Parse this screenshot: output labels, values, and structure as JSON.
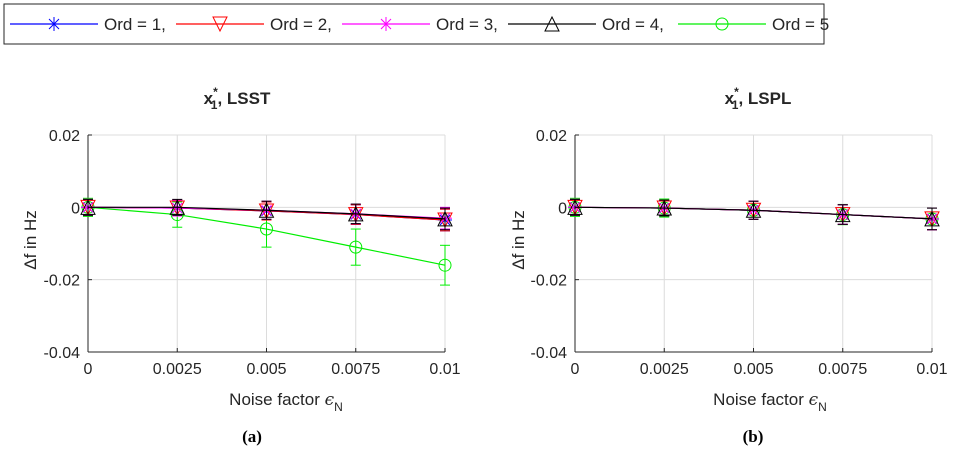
{
  "legend": {
    "entries": [
      {
        "label": "Ord = 1,",
        "color": "#0000ff",
        "marker": "asterisk"
      },
      {
        "label": "Ord = 2,",
        "color": "#ff0000",
        "marker": "triangle-down"
      },
      {
        "label": "Ord = 3,",
        "color": "#ff00ff",
        "marker": "asterisk"
      },
      {
        "label": "Ord = 4,",
        "color": "#000000",
        "marker": "triangle-up"
      },
      {
        "label": "Ord = 5",
        "color": "#00ee00",
        "marker": "circle"
      }
    ]
  },
  "chart_data": [
    {
      "type": "line",
      "title_main": "x",
      "title_sup": "*",
      "title_sub": "1",
      "title_rest": ", LSST",
      "xlabel_main": "Noise factor ",
      "xlabel_symbol": "ϵ",
      "xlabel_sub": "N",
      "ylabel": "Δf  in Hz",
      "caption": "(a)",
      "xlim": [
        0,
        0.01
      ],
      "ylim": [
        -0.04,
        0.02
      ],
      "xticks": [
        "0",
        "0.0025",
        "0.005",
        "0.0075",
        "0.01"
      ],
      "yticks": [
        "-0.04",
        "-0.02",
        "0",
        "0.02"
      ],
      "x": [
        0,
        0.0025,
        0.005,
        0.0075,
        0.01
      ],
      "series": [
        {
          "name": "Ord = 1",
          "values": [
            0,
            -0.0002,
            -0.001,
            -0.002,
            -0.0035
          ],
          "err": [
            0.0022,
            0.0022,
            0.0025,
            0.0027,
            0.003
          ]
        },
        {
          "name": "Ord = 2",
          "values": [
            0,
            -0.0002,
            -0.001,
            -0.002,
            -0.0035
          ],
          "err": [
            0.0022,
            0.0022,
            0.0025,
            0.0027,
            0.003
          ]
        },
        {
          "name": "Ord = 3",
          "values": [
            0,
            -0.0002,
            -0.0008,
            -0.0018,
            -0.003
          ],
          "err": [
            0.0022,
            0.0022,
            0.0025,
            0.0027,
            0.003
          ]
        },
        {
          "name": "Ord = 4",
          "values": [
            0,
            0,
            -0.0008,
            -0.0018,
            -0.0032
          ],
          "err": [
            0.0022,
            0.0022,
            0.0025,
            0.0027,
            0.003
          ]
        },
        {
          "name": "Ord = 5",
          "values": [
            0,
            -0.002,
            -0.006,
            -0.011,
            -0.016
          ],
          "err": [
            0.0025,
            0.0035,
            0.005,
            0.005,
            0.0055
          ]
        }
      ]
    },
    {
      "type": "line",
      "title_main": "x",
      "title_sup": "*",
      "title_sub": "1",
      "title_rest": ", LSPL",
      "xlabel_main": "Noise factor ",
      "xlabel_symbol": "ϵ",
      "xlabel_sub": "N",
      "ylabel": "Δf  in Hz",
      "caption": "(b)",
      "xlim": [
        0,
        0.01
      ],
      "ylim": [
        -0.04,
        0.02
      ],
      "xticks": [
        "0",
        "0.0025",
        "0.005",
        "0.0075",
        "0.01"
      ],
      "yticks": [
        "-0.04",
        "-0.02",
        "0",
        "0.02"
      ],
      "x": [
        0,
        0.0025,
        0.005,
        0.0075,
        0.01
      ],
      "series": [
        {
          "name": "Ord = 1",
          "values": [
            0,
            -0.0002,
            -0.0008,
            -0.002,
            -0.0032
          ],
          "err": [
            0.0022,
            0.0022,
            0.0025,
            0.0027,
            0.003
          ]
        },
        {
          "name": "Ord = 2",
          "values": [
            0,
            -0.0002,
            -0.0008,
            -0.002,
            -0.0032
          ],
          "err": [
            0.0022,
            0.0022,
            0.0025,
            0.0027,
            0.003
          ]
        },
        {
          "name": "Ord = 3",
          "values": [
            0,
            -0.0002,
            -0.0008,
            -0.002,
            -0.0032
          ],
          "err": [
            0.0022,
            0.0022,
            0.0025,
            0.0027,
            0.003
          ]
        },
        {
          "name": "Ord = 4",
          "values": [
            0,
            -0.0002,
            -0.0008,
            -0.002,
            -0.0032
          ],
          "err": [
            0.0022,
            0.0022,
            0.0025,
            0.0027,
            0.003
          ]
        },
        {
          "name": "Ord = 5",
          "values": [
            0,
            -0.0002,
            -0.0008,
            -0.002,
            -0.0032
          ],
          "err": [
            0.0025,
            0.0025,
            0.0025,
            0.0028,
            0.003
          ]
        }
      ]
    }
  ]
}
